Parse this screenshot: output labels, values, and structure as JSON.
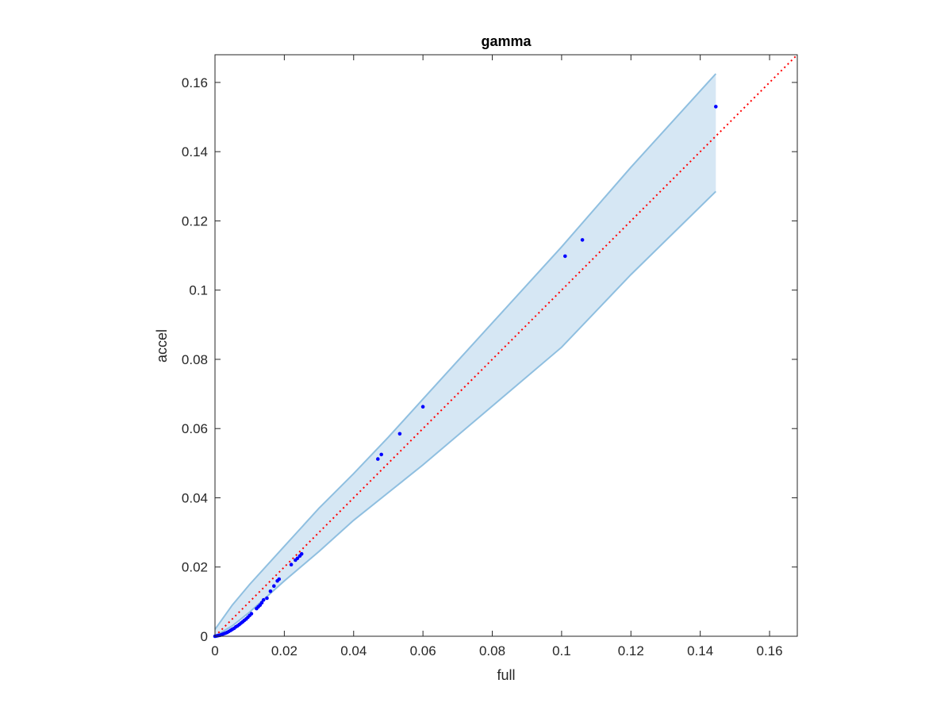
{
  "chart_data": {
    "type": "scatter",
    "title": "gamma",
    "xlabel": "full",
    "ylabel": "accel",
    "xlim": [
      0,
      0.168
    ],
    "ylim": [
      0,
      0.168
    ],
    "xticks": [
      0,
      0.02,
      0.04,
      0.06,
      0.08,
      0.1,
      0.12,
      0.14,
      0.16
    ],
    "xtick_labels": [
      "0",
      "0.02",
      "0.04",
      "0.06",
      "0.08",
      "0.1",
      "0.12",
      "0.14",
      "0.16"
    ],
    "yticks": [
      0,
      0.02,
      0.04,
      0.06,
      0.08,
      0.1,
      0.12,
      0.14,
      0.16
    ],
    "ytick_labels": [
      "0",
      "0.02",
      "0.04",
      "0.06",
      "0.08",
      "0.1",
      "0.12",
      "0.14",
      "0.16"
    ],
    "grid": false,
    "colors": {
      "points": "#0000ff",
      "reference_line": "#ff0000",
      "band_fill": "#d6e7f4",
      "band_edge": "#8fbfe0",
      "axes": "#262626"
    },
    "band": {
      "x": [
        0,
        0.005,
        0.01,
        0.02,
        0.03,
        0.04,
        0.05,
        0.06,
        0.08,
        0.1,
        0.12,
        0.1445
      ],
      "upper": [
        0.002,
        0.009,
        0.015,
        0.026,
        0.037,
        0.047,
        0.0575,
        0.0685,
        0.0905,
        0.1125,
        0.1355,
        0.1625
      ],
      "lower": [
        0,
        0.003,
        0.007,
        0.016,
        0.0245,
        0.0335,
        0.0415,
        0.0495,
        0.0665,
        0.0835,
        0.1045,
        0.1285
      ]
    },
    "reference_line": {
      "style": "dotted",
      "x": [
        0,
        0.168
      ],
      "y": [
        0,
        0.168
      ]
    },
    "points": {
      "x": [
        0,
        0.0005,
        0.001,
        0.0015,
        0.002,
        0.0025,
        0.003,
        0.0035,
        0.004,
        0.0045,
        0.005,
        0.0055,
        0.006,
        0.0065,
        0.007,
        0.0075,
        0.008,
        0.0085,
        0.009,
        0.0095,
        0.01,
        0.0105,
        0.012,
        0.0125,
        0.013,
        0.0135,
        0.014,
        0.015,
        0.016,
        0.017,
        0.018,
        0.0185,
        0.022,
        0.0232,
        0.0238,
        0.0245,
        0.025,
        0.047,
        0.048,
        0.0533,
        0.06,
        0.101,
        0.106,
        0.1445
      ],
      "y": [
        0,
        0.0001,
        0.0002,
        0.0003,
        0.0005,
        0.0007,
        0.0009,
        0.0011,
        0.0014,
        0.0017,
        0.002,
        0.0023,
        0.0027,
        0.003,
        0.0034,
        0.0038,
        0.0042,
        0.0046,
        0.005,
        0.0055,
        0.006,
        0.0065,
        0.008,
        0.0085,
        0.009,
        0.0097,
        0.0105,
        0.011,
        0.013,
        0.0145,
        0.016,
        0.0165,
        0.0207,
        0.022,
        0.0225,
        0.0232,
        0.0238,
        0.0512,
        0.0525,
        0.0585,
        0.0663,
        0.1098,
        0.1145,
        0.153
      ]
    }
  }
}
